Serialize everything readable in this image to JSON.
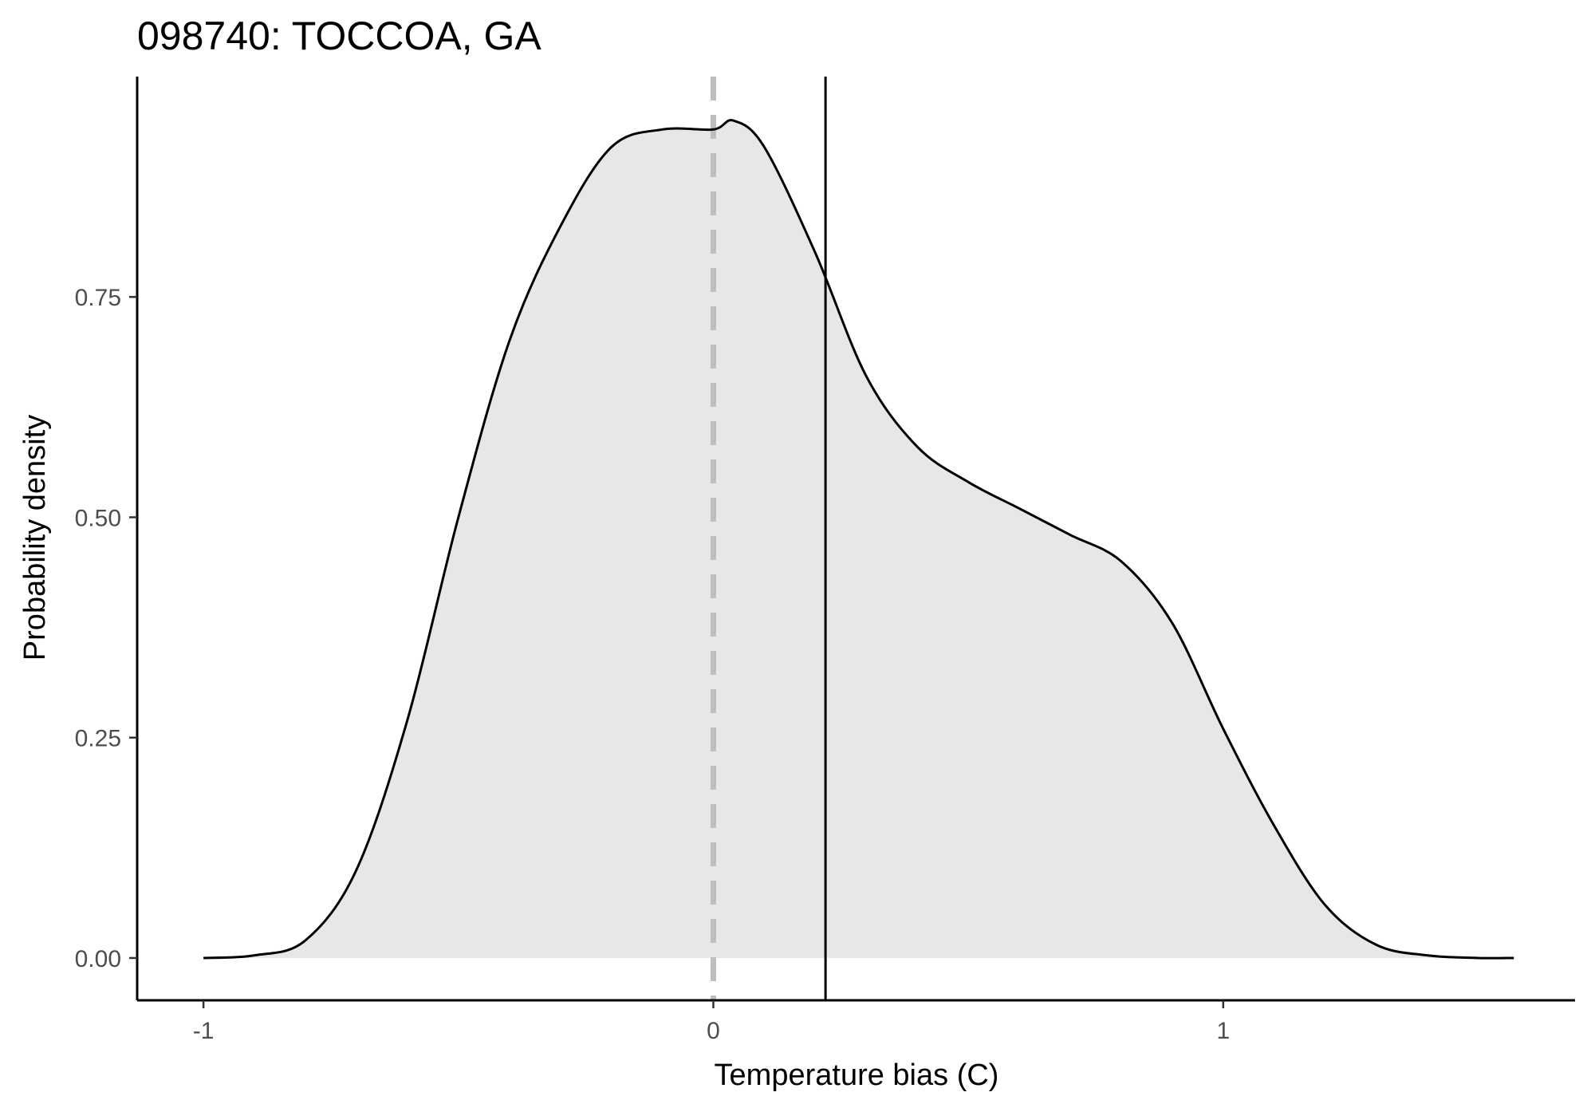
{
  "chart_data": {
    "type": "area",
    "title": "098740: TOCCOA, GA",
    "xlabel": "Temperature bias (C)",
    "ylabel": "Probability density",
    "xlim": [
      -1.13,
      1.69
    ],
    "ylim": [
      -0.048,
      1.0
    ],
    "x_ticks": [
      -1,
      0,
      1
    ],
    "x_tick_labels": [
      "-1",
      "0",
      "1"
    ],
    "y_ticks": [
      0,
      0.25,
      0.5,
      0.75
    ],
    "y_tick_labels": [
      "0.00",
      "0.25",
      "0.50",
      "0.75"
    ],
    "grid": false,
    "legend": "none",
    "series": [
      {
        "x": [
          -1.0,
          -0.9,
          -0.8,
          -0.7,
          -0.6,
          -0.5,
          -0.4,
          -0.3,
          -0.2,
          -0.1,
          0.0,
          0.04,
          0.1,
          0.2,
          0.3,
          0.4,
          0.5,
          0.6,
          0.7,
          0.8,
          0.9,
          1.0,
          1.1,
          1.2,
          1.3,
          1.4,
          1.5,
          1.57
        ],
        "y": [
          0.0,
          0.003,
          0.02,
          0.1,
          0.27,
          0.5,
          0.7,
          0.83,
          0.92,
          0.94,
          0.94,
          0.95,
          0.92,
          0.8,
          0.66,
          0.58,
          0.54,
          0.51,
          0.48,
          0.45,
          0.38,
          0.26,
          0.15,
          0.06,
          0.015,
          0.003,
          0.0,
          0.0
        ]
      }
    ],
    "vlines": [
      {
        "x": 0.0,
        "style": "dashed",
        "color": "#bebebe"
      },
      {
        "x": 0.22,
        "style": "solid",
        "color": "#000000"
      }
    ],
    "fill_color": "#e6e7e8",
    "line_color": "#000000"
  }
}
